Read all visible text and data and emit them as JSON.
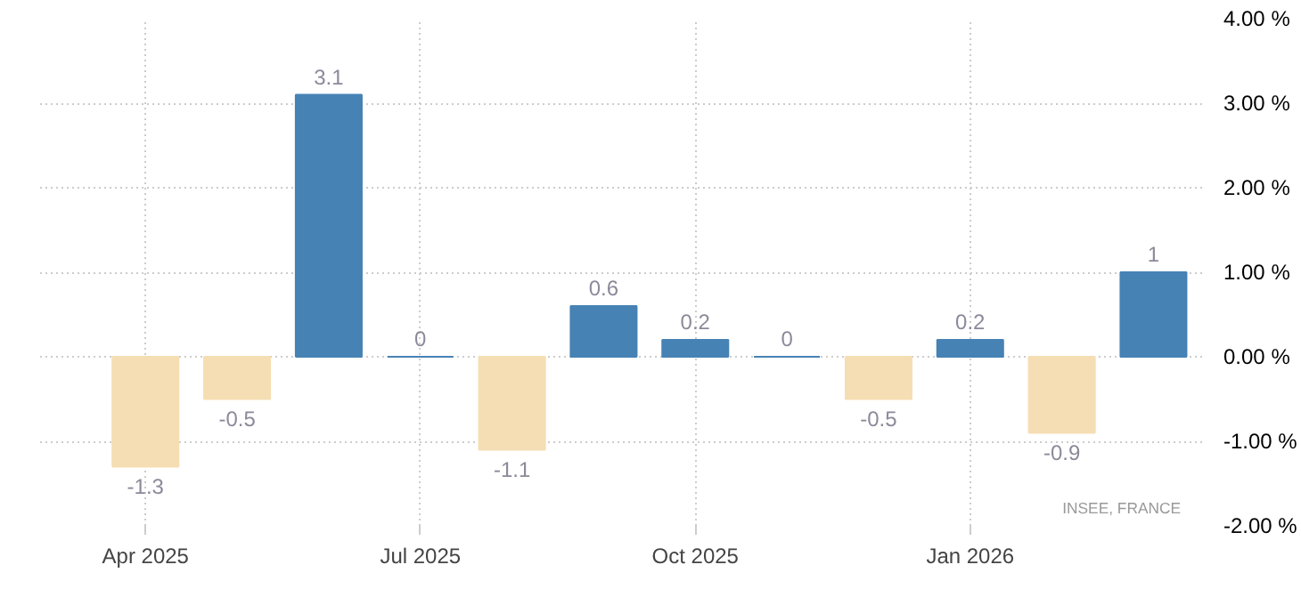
{
  "chart_data": {
    "type": "bar",
    "categories": [
      "Apr 2025",
      null,
      null,
      "Jul 2025",
      null,
      null,
      "Oct 2025",
      null,
      null,
      "Jan 2026",
      null,
      null
    ],
    "values": [
      -1.3,
      -0.5,
      3.1,
      0,
      -1.1,
      0.6,
      0.2,
      0,
      -0.5,
      0.2,
      -0.9,
      1
    ],
    "colors": [
      "#f5deb3",
      "#f5deb3",
      "#4682b4",
      "#4682b4",
      "#f5deb3",
      "#4682b4",
      "#4682b4",
      "#4682b4",
      "#f5deb3",
      "#4682b4",
      "#f5deb3",
      "#4682b4"
    ],
    "ylim": [
      -2,
      4
    ],
    "yticks": [
      {
        "value": -2,
        "label": "-2.00 %"
      },
      {
        "value": -1,
        "label": "-1.00 %"
      },
      {
        "value": 0,
        "label": "0.00 %"
      },
      {
        "value": 1,
        "label": "1.00 %"
      },
      {
        "value": 2,
        "label": "2.00 %"
      },
      {
        "value": 3,
        "label": "3.00 %"
      },
      {
        "value": 4,
        "label": "4.00 %"
      }
    ],
    "grid": true,
    "data_labels": true,
    "annotations": [
      "INSEE, FRANCE"
    ]
  }
}
